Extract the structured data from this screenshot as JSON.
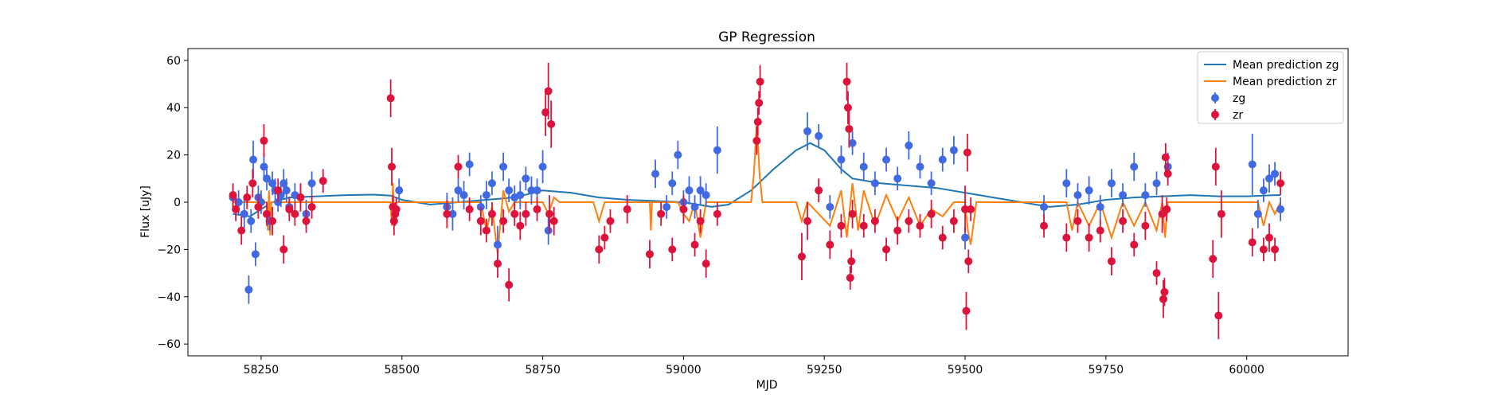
{
  "chart_data": {
    "type": "scatter",
    "title": "GP Regression",
    "xlabel": "MJD",
    "ylabel": "Flux [uJy]",
    "xlim": [
      58120,
      60180
    ],
    "ylim": [
      -65,
      65
    ],
    "xticks": [
      58250,
      58500,
      58750,
      59000,
      59250,
      59500,
      59750,
      60000
    ],
    "yticks": [
      -60,
      -40,
      -20,
      0,
      20,
      40,
      60
    ],
    "legend_position": "top-right",
    "colors": {
      "zg_line": "#1f77b4",
      "zr_line": "#ff7f0e",
      "zg_points": "#4169e1",
      "zr_points": "#dc143c"
    },
    "lines": [
      {
        "name": "Mean prediction zg",
        "color": "#1f77b4",
        "x": [
          58200,
          58230,
          58270,
          58300,
          58350,
          58400,
          58450,
          58480,
          58500,
          58550,
          58600,
          58650,
          58700,
          58750,
          58800,
          58850,
          58900,
          58950,
          59000,
          59050,
          59080,
          59120,
          59160,
          59200,
          59225,
          59250,
          59280,
          59300,
          59350,
          59400,
          59450,
          59500,
          59550,
          59600,
          59650,
          59700,
          59750,
          59800,
          59850,
          59900,
          59950,
          60000,
          60050,
          60060
        ],
        "y": [
          -5,
          -6,
          0,
          2,
          2.5,
          3,
          3.2,
          2.8,
          1,
          -1,
          0,
          1,
          2,
          5,
          4,
          2,
          1,
          0.5,
          0,
          -2,
          -1,
          5,
          14,
          22,
          25,
          22,
          14,
          10,
          8,
          7,
          6,
          4,
          2,
          0,
          -2,
          -1,
          1,
          2,
          2.5,
          3,
          2.5,
          2.5,
          3,
          3
        ]
      },
      {
        "name": "Mean prediction zr",
        "color": "#ff7f0e",
        "x": [
          58200,
          58260,
          58262,
          58264,
          58266,
          58268,
          58280,
          58300,
          58360,
          58480,
          58482,
          58484,
          58486,
          58490,
          58580,
          58640,
          58650,
          58660,
          58670,
          58680,
          58690,
          58700,
          58750,
          58760,
          58770,
          58780,
          58840,
          58850,
          58860,
          58900,
          58940,
          58942,
          58944,
          58946,
          58950,
          58990,
          59000,
          59010,
          59020,
          59030,
          59040,
          59100,
          59120,
          59125,
          59130,
          59135,
          59140,
          59200,
          59210,
          59220,
          59240,
          59260,
          59280,
          59290,
          59300,
          59310,
          59320,
          59340,
          59360,
          59380,
          59400,
          59420,
          59440,
          59460,
          59480,
          59500,
          59505,
          59510,
          59520,
          59680,
          59690,
          59700,
          59720,
          59740,
          59760,
          59780,
          59800,
          59820,
          59840,
          59850,
          59855,
          59860,
          59870,
          60020,
          60030,
          60040,
          60050,
          60060
        ],
        "y": [
          0,
          0,
          -12,
          5,
          -14,
          0,
          0,
          0,
          0,
          0,
          -10,
          8,
          -10,
          0,
          0,
          0,
          -12,
          -2,
          -22,
          5,
          -4,
          0,
          0,
          -5,
          2,
          0,
          0,
          -8,
          0,
          0,
          0,
          -12,
          0,
          0,
          0,
          0,
          -5,
          -8,
          0,
          -15,
          0,
          0,
          0,
          12,
          34,
          12,
          0,
          0,
          -8,
          0,
          -5,
          -10,
          5,
          -15,
          8,
          -12,
          5,
          -10,
          3,
          -8,
          2,
          -10,
          -3,
          -6,
          0,
          0,
          -12,
          -18,
          0,
          0,
          -12,
          0,
          -10,
          0,
          -15,
          0,
          -10,
          0,
          -12,
          0,
          -15,
          0,
          0,
          0,
          -10,
          0,
          -5,
          0
        ]
      }
    ],
    "series": [
      {
        "name": "zg",
        "color": "#4169e1",
        "x": [
          58200,
          58210,
          58220,
          58228,
          58232,
          58236,
          58240,
          58245,
          58250,
          58255,
          58260,
          58265,
          58270,
          58275,
          58280,
          58285,
          58290,
          58295,
          58300,
          58310,
          58320,
          58330,
          58340,
          58495,
          58580,
          58590,
          58600,
          58610,
          58620,
          58640,
          58650,
          58660,
          58670,
          58680,
          58690,
          58700,
          58710,
          58720,
          58730,
          58740,
          58750,
          58760,
          58950,
          58970,
          58980,
          58990,
          59000,
          59010,
          59020,
          59030,
          59040,
          59060,
          59220,
          59240,
          59260,
          59280,
          59300,
          59320,
          59340,
          59360,
          59380,
          59400,
          59420,
          59440,
          59460,
          59480,
          59500,
          59640,
          59680,
          59700,
          59720,
          59740,
          59760,
          59780,
          59800,
          59820,
          59840,
          59860,
          60010,
          60020,
          60030,
          60040,
          60050,
          60060
        ],
        "y": [
          2,
          0,
          -5,
          -37,
          -8,
          18,
          -22,
          2,
          0,
          15,
          10,
          -8,
          8,
          5,
          0,
          3,
          8,
          5,
          -2,
          3,
          2,
          -5,
          8,
          5,
          -2,
          -5,
          5,
          3,
          16,
          -2,
          3,
          8,
          -18,
          15,
          5,
          2,
          3,
          10,
          5,
          5,
          15,
          -12,
          12,
          -2,
          8,
          20,
          0,
          5,
          -2,
          5,
          3,
          22,
          30,
          28,
          -2,
          18,
          25,
          15,
          8,
          18,
          10,
          24,
          15,
          8,
          18,
          22,
          -15,
          -2,
          8,
          3,
          5,
          -2,
          8,
          3,
          15,
          3,
          8,
          15,
          16,
          -5,
          5,
          10,
          12,
          -3
        ],
        "err": [
          5,
          5,
          6,
          6,
          5,
          8,
          5,
          5,
          5,
          6,
          5,
          4,
          5,
          5,
          4,
          5,
          6,
          5,
          4,
          5,
          5,
          6,
          5,
          5,
          6,
          7,
          5,
          6,
          5,
          5,
          6,
          5,
          8,
          6,
          5,
          5,
          6,
          5,
          6,
          5,
          7,
          6,
          6,
          5,
          5,
          6,
          5,
          6,
          5,
          6,
          5,
          10,
          8,
          5,
          5,
          6,
          5,
          6,
          5,
          5,
          5,
          6,
          5,
          5,
          5,
          6,
          5,
          5,
          6,
          5,
          6,
          5,
          6,
          5,
          6,
          5,
          5,
          6,
          13,
          6,
          5,
          6,
          5,
          5
        ]
      },
      {
        "name": "zr",
        "color": "#dc143c",
        "x": [
          58200,
          58205,
          58215,
          58225,
          58235,
          58245,
          58255,
          58260,
          58270,
          58280,
          58290,
          58300,
          58310,
          58320,
          58330,
          58340,
          58360,
          58480,
          58482,
          58484,
          58486,
          58488,
          58490,
          58580,
          58600,
          58620,
          58640,
          58650,
          58660,
          58670,
          58680,
          58690,
          58700,
          58710,
          58720,
          58740,
          58755,
          58760,
          58762,
          58765,
          58770,
          58850,
          58860,
          58870,
          58900,
          58940,
          58960,
          58980,
          59000,
          59020,
          59030,
          59040,
          59060,
          59130,
          59132,
          59134,
          59136,
          59210,
          59220,
          59240,
          59260,
          59280,
          59290,
          59292,
          59294,
          59296,
          59298,
          59300,
          59320,
          59340,
          59360,
          59380,
          59400,
          59420,
          59440,
          59460,
          59480,
          59500,
          59502,
          59504,
          59506,
          59510,
          59640,
          59680,
          59700,
          59720,
          59740,
          59760,
          59780,
          59800,
          59820,
          59840,
          59850,
          59852,
          59854,
          59856,
          59858,
          59860,
          59940,
          59945,
          59950,
          59955,
          60010,
          60030,
          60040,
          60050,
          60060
        ],
        "y": [
          3,
          -3,
          -12,
          2,
          8,
          -2,
          26,
          -5,
          -8,
          5,
          -20,
          -3,
          -5,
          2,
          -8,
          -2,
          9,
          44,
          15,
          -2,
          -8,
          -5,
          -3,
          -5,
          15,
          -3,
          -8,
          -12,
          -5,
          -26,
          -8,
          -35,
          -5,
          -10,
          -5,
          -3,
          38,
          47,
          -5,
          33,
          -8,
          -20,
          -15,
          -8,
          -3,
          -22,
          -5,
          -20,
          -3,
          -18,
          -8,
          -26,
          -5,
          26,
          34,
          42,
          51,
          -23,
          -8,
          5,
          -18,
          -10,
          51,
          40,
          31,
          -32,
          -25,
          -5,
          -10,
          -8,
          -20,
          -12,
          -8,
          -10,
          -5,
          -15,
          -8,
          -3,
          -46,
          21,
          -25,
          -3,
          -10,
          -15,
          -8,
          -15,
          -12,
          -25,
          -8,
          -18,
          -10,
          -30,
          -5,
          -41,
          -38,
          19,
          -3,
          12,
          -24,
          15,
          -48,
          -5,
          -17,
          -20,
          -15,
          -20,
          8
        ],
        "err": [
          5,
          5,
          6,
          5,
          6,
          5,
          7,
          5,
          6,
          5,
          6,
          5,
          5,
          6,
          5,
          5,
          5,
          8,
          8,
          5,
          6,
          5,
          5,
          6,
          5,
          5,
          6,
          5,
          5,
          6,
          5,
          7,
          5,
          6,
          5,
          5,
          10,
          12,
          8,
          10,
          6,
          6,
          5,
          5,
          6,
          6,
          5,
          5,
          6,
          5,
          5,
          6,
          5,
          6,
          6,
          5,
          7,
          10,
          8,
          5,
          6,
          5,
          8,
          7,
          8,
          5,
          5,
          6,
          5,
          5,
          5,
          6,
          5,
          5,
          6,
          5,
          5,
          10,
          8,
          8,
          5,
          5,
          5,
          6,
          5,
          6,
          5,
          6,
          5,
          5,
          6,
          5,
          8,
          8,
          6,
          6,
          5,
          5,
          8,
          8,
          10,
          10,
          6,
          5,
          6,
          5,
          5
        ]
      }
    ]
  }
}
